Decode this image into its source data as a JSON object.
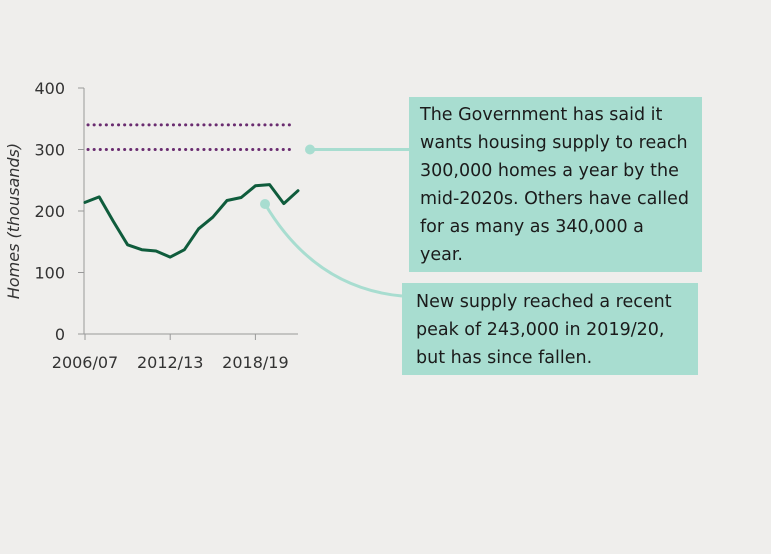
{
  "chart_data": {
    "type": "line",
    "ylabel": "Homes (thousands)",
    "xlabel": "",
    "ylim": [
      0,
      400
    ],
    "yticks": [
      0,
      100,
      200,
      300,
      400
    ],
    "xtick_labels": [
      "2006/07",
      "2012/13",
      "2018/19"
    ],
    "x": [
      "2006/07",
      "2007/08",
      "2008/09",
      "2009/10",
      "2010/11",
      "2011/12",
      "2012/13",
      "2013/14",
      "2014/15",
      "2015/16",
      "2016/17",
      "2017/18",
      "2018/19",
      "2019/20",
      "2020/21",
      "2021/22"
    ],
    "series": [
      {
        "name": "",
        "color": "#0f5c3c",
        "values": [
          214,
          223,
          183,
          145,
          137,
          135,
          125,
          137,
          171,
          190,
          217,
          222,
          241,
          243,
          212,
          233
        ]
      }
    ],
    "reference_lines": [
      {
        "value": 300,
        "color": "#6a2c70",
        "style": "dotted"
      },
      {
        "value": 340,
        "color": "#6a2c70",
        "style": "dotted"
      }
    ],
    "annotations": [
      {
        "text": "The Government has said it wants housing supply to reach 300,000 homes a year by the mid-2020s. Others have called for as many as 340,000 a year."
      },
      {
        "text": "New supply reached a recent peak of 243,000 in 2019/20, but has since fallen."
      }
    ],
    "grid": false,
    "legend": "none"
  },
  "colors": {
    "background": "#efeeec",
    "callout_fill": "#a8ddd0",
    "connector": "#a8ddd0",
    "axis": "#999999"
  }
}
